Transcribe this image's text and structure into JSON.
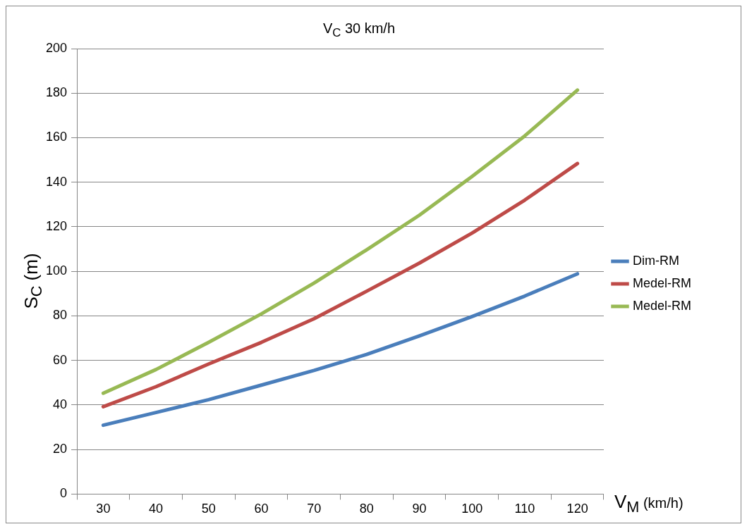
{
  "chart_data": {
    "type": "line",
    "title": "V$_{C}$ 30 km/h",
    "xlabel": "V$_{M}$ (km/h)",
    "ylabel": "S$_{C}$ (m)",
    "categories": [
      "30",
      "40",
      "50",
      "60",
      "70",
      "80",
      "90",
      "100",
      "110",
      "120"
    ],
    "series": [
      {
        "name": "Dim-RM",
        "color": "#4a7ebb",
        "values": [
          30.9,
          36.6,
          42.4,
          48.9,
          55.5,
          62.7,
          71.0,
          79.7,
          88.9,
          98.9
        ]
      },
      {
        "name": "Medel-RM",
        "color": "#be4b48",
        "values": [
          39.2,
          48.2,
          58.4,
          68.1,
          78.7,
          91.1,
          103.7,
          117.2,
          132.0,
          148.4
        ]
      },
      {
        "name": "Medel-RM",
        "color": "#98b954",
        "values": [
          45.3,
          55.9,
          68.1,
          80.9,
          94.7,
          109.7,
          125.2,
          142.6,
          160.8,
          181.4
        ]
      }
    ],
    "ylim": [
      0,
      200
    ],
    "yticks": [
      0,
      20,
      40,
      60,
      80,
      100,
      120,
      140,
      160,
      180,
      200
    ],
    "grid": "y",
    "legend": "right",
    "marker": "none",
    "line_style": "solid"
  }
}
